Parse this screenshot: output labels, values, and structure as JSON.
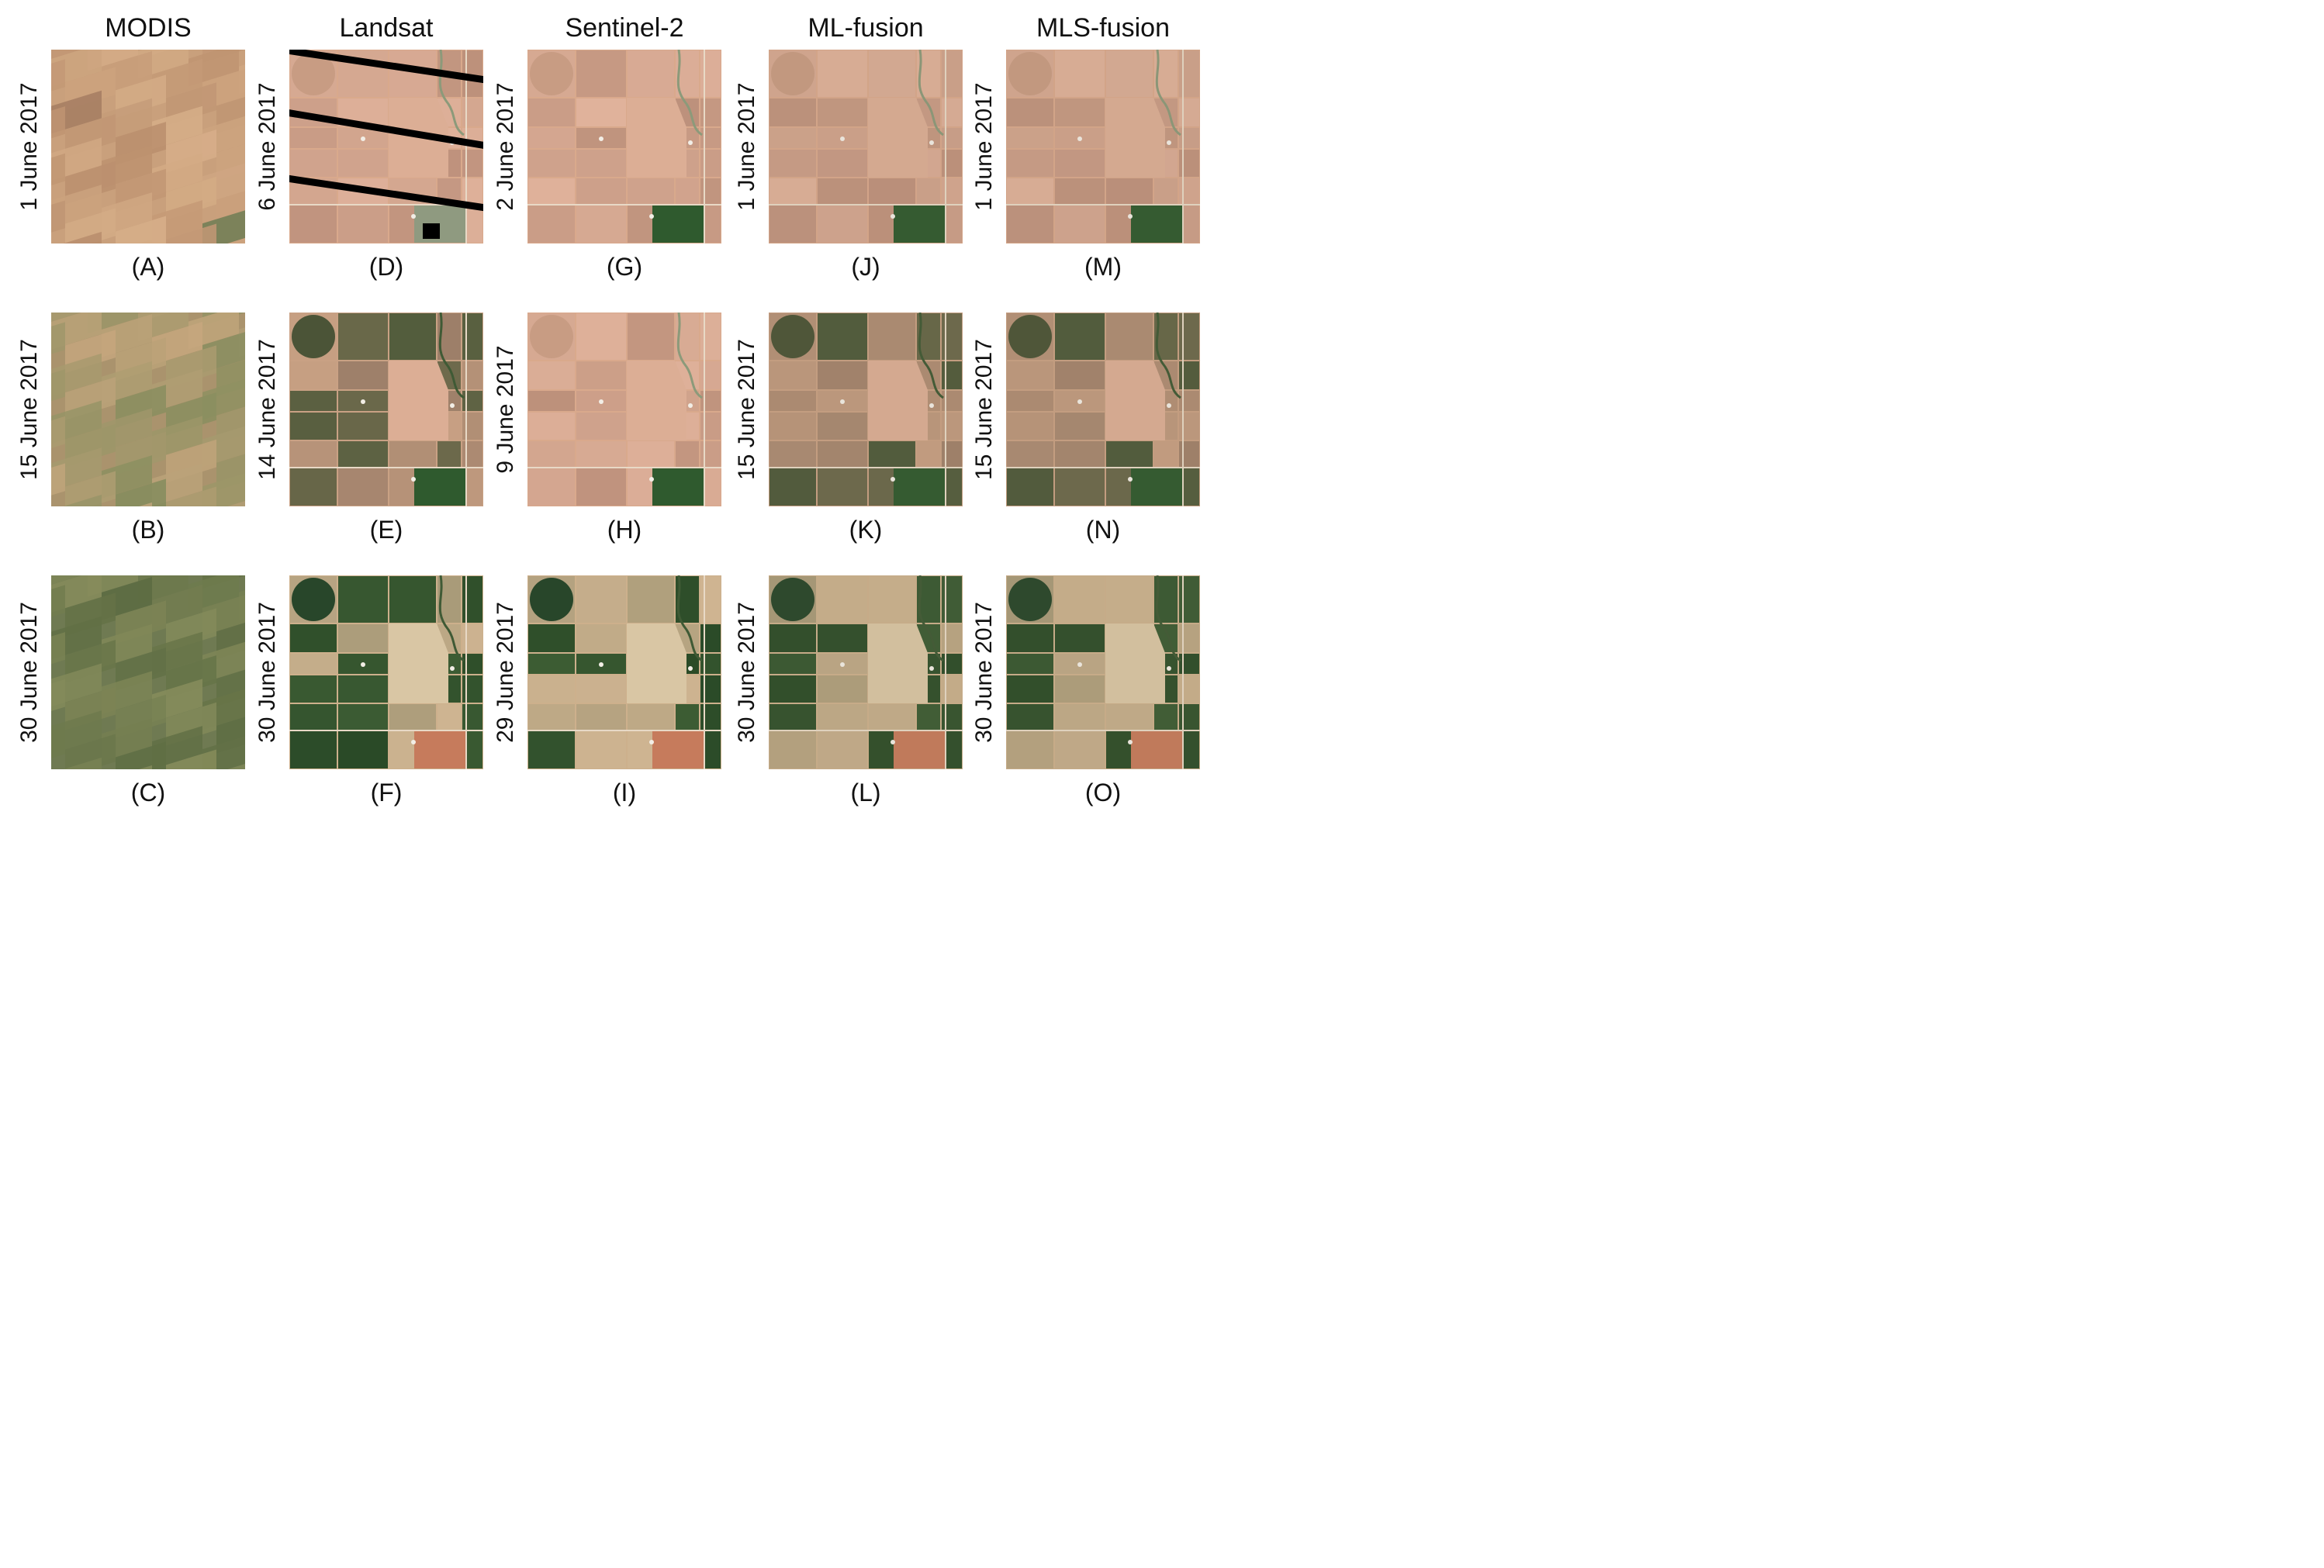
{
  "columns": [
    {
      "title": "MODIS",
      "style": "modis"
    },
    {
      "title": "Landsat",
      "style": "landsat"
    },
    {
      "title": "Sentinel-2",
      "style": "s2"
    },
    {
      "title": "ML-fusion",
      "style": "fusion"
    },
    {
      "title": "MLS-fusion",
      "style": "fusion"
    }
  ],
  "panels": [
    [
      {
        "date": "1 June 2017",
        "letter": "(A)",
        "season": "early"
      },
      {
        "date": "15 June 2017",
        "letter": "(B)",
        "season": "mid"
      },
      {
        "date": "30 June 2017",
        "letter": "(C)",
        "season": "late"
      }
    ],
    [
      {
        "date": "6 June 2017",
        "letter": "(D)",
        "season": "early",
        "gaps": true
      },
      {
        "date": "14 June 2017",
        "letter": "(E)",
        "season": "mid"
      },
      {
        "date": "30 June 2017",
        "letter": "(F)",
        "season": "late"
      }
    ],
    [
      {
        "date": "2 June 2017",
        "letter": "(G)",
        "season": "early"
      },
      {
        "date": "9 June 2017",
        "letter": "(H)",
        "season": "early"
      },
      {
        "date": "29 June 2017",
        "letter": "(I)",
        "season": "late"
      }
    ],
    [
      {
        "date": "1 June 2017",
        "letter": "(J)",
        "season": "early"
      },
      {
        "date": "15 June 2017",
        "letter": "(K)",
        "season": "mid"
      },
      {
        "date": "30 June 2017",
        "letter": "(L)",
        "season": "late"
      }
    ],
    [
      {
        "date": "1 June 2017",
        "letter": "(M)",
        "season": "early"
      },
      {
        "date": "15 June 2017",
        "letter": "(N)",
        "season": "mid"
      },
      {
        "date": "30 June 2017",
        "letter": "(O)",
        "season": "late"
      }
    ]
  ],
  "colors": {
    "bare_soil": "#d9a98c",
    "bare_soil_dark": "#a77d67",
    "green_crop": "#2f5a2e",
    "mid_crop": "#6d7252",
    "modis_early": "#c9a07c",
    "modis_late": "#6f7a52",
    "gap_stripe": "#000000",
    "red_field": "#c67b5c"
  }
}
